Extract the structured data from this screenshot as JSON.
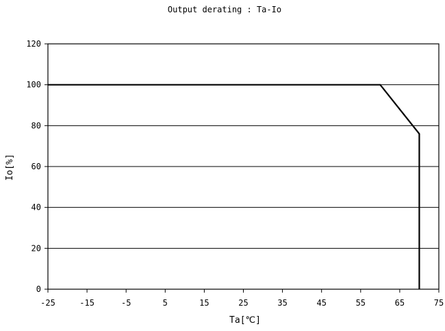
{
  "chart_data": {
    "type": "line",
    "title": "Output derating : Ta-Io",
    "xlabel": "Ta[℃]",
    "ylabel": "Io[%]",
    "xlim": [
      -25,
      75
    ],
    "ylim": [
      0,
      120
    ],
    "x_ticks": [
      -25,
      -15,
      -5,
      5,
      15,
      25,
      35,
      45,
      55,
      65,
      75
    ],
    "y_ticks": [
      0,
      20,
      40,
      60,
      80,
      100,
      120
    ],
    "grid": "horizontal",
    "series": [
      {
        "x": [
          -25,
          60,
          70,
          70
        ],
        "y": [
          100,
          100,
          76,
          0
        ]
      }
    ]
  }
}
